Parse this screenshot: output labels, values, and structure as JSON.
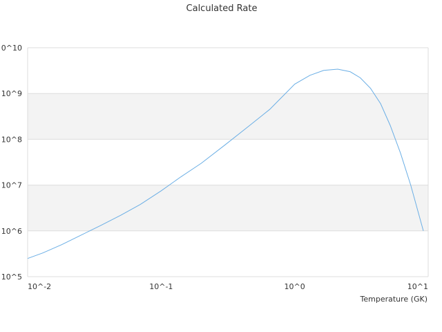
{
  "chart_data": {
    "type": "line",
    "title": "Calculated Rate",
    "xlabel": "Temperature (GK)",
    "ylabel": "",
    "x_scale": "log",
    "y_scale": "log",
    "xlim": [
      0.01,
      10
    ],
    "ylim": [
      100000,
      10000000000
    ],
    "grid": "alternating horizontal bands",
    "legend": "none",
    "x_ticks": [
      "10^-2",
      "10^-1",
      "10^0",
      "10^1"
    ],
    "y_ticks": [
      "10^5",
      "10^6",
      "10^7",
      "10^8",
      "10^9",
      "0^10"
    ],
    "series": [
      {
        "color": "#6aaee5",
        "x": [
          0.01,
          0.013,
          0.018,
          0.025,
          0.035,
          0.05,
          0.07,
          0.1,
          0.14,
          0.2,
          0.3,
          0.45,
          0.65,
          1.0,
          1.3,
          1.65,
          2.1,
          2.6,
          3.1,
          3.7,
          4.4,
          5.2,
          6.2,
          7.4,
          9.2
        ],
        "y": [
          250000,
          330000,
          500000,
          800000,
          1300000,
          2200000,
          3800000,
          7500000,
          15000000,
          30000000,
          75000000,
          190000000,
          450000000,
          1600000000,
          2500000000,
          3200000000,
          3400000000,
          3000000000,
          2200000000,
          1300000000,
          600000000,
          200000000,
          50000000,
          10000000,
          1000000
        ]
      }
    ]
  }
}
